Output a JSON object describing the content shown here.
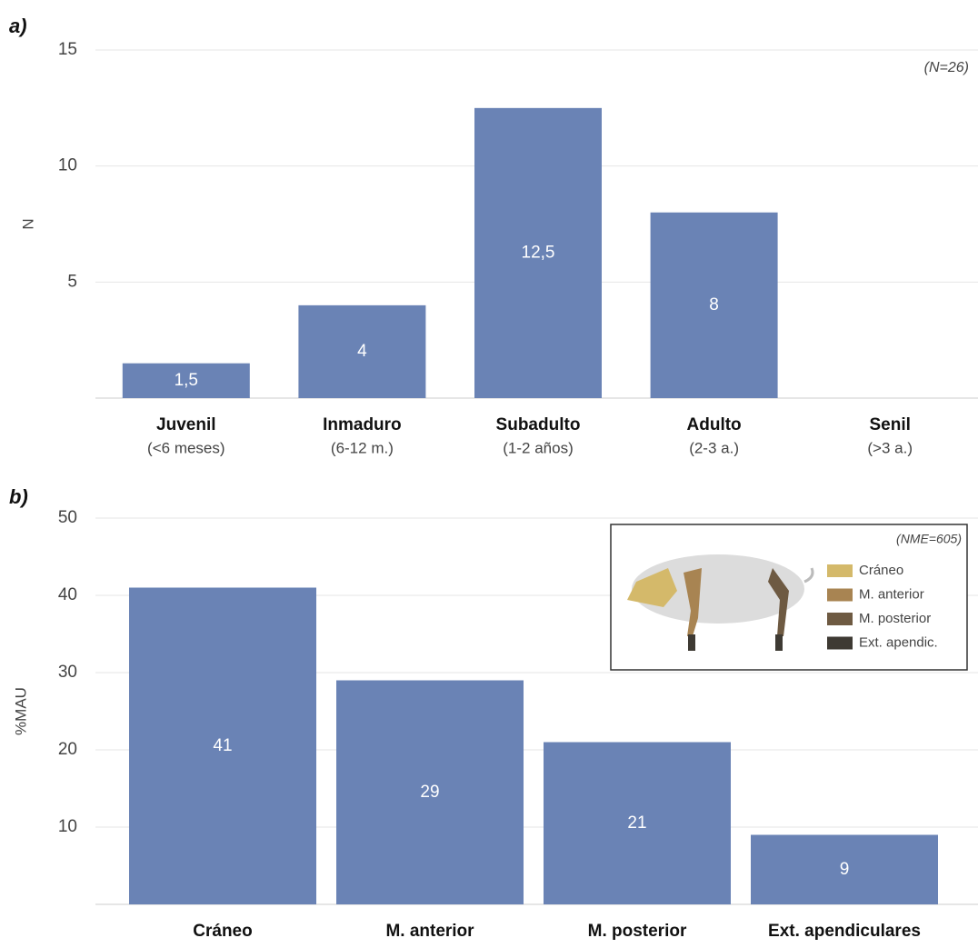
{
  "chart_data": [
    {
      "type": "bar",
      "panel": "a)",
      "note": "(N=26)",
      "y_label": "N",
      "categories": [
        "Juvenil",
        "Inmaduro",
        "Subadulto",
        "Adulto",
        "Senil"
      ],
      "category_notes": [
        "(<6 meses)",
        "(6-12 m.)",
        "(1-2 años)",
        "(2-3 a.)",
        "(>3 a.)"
      ],
      "values": [
        1.5,
        4,
        12.5,
        8,
        null
      ],
      "value_labels": [
        "1,5",
        "4",
        "12,5",
        "8",
        null
      ],
      "color": "#6a83b5",
      "ylim": [
        0,
        15
      ],
      "yticks": [
        5,
        10,
        15
      ],
      "grid": true
    },
    {
      "type": "bar",
      "panel": "b)",
      "y_label": "%MAU",
      "categories": [
        "Cráneo",
        "M. anterior",
        "M. posterior",
        "Ext. apendiculares"
      ],
      "values": [
        41,
        29,
        21,
        9
      ],
      "color": "#6a83b5",
      "ylim": [
        0,
        50
      ],
      "yticks": [
        10,
        20,
        30,
        40,
        50
      ],
      "grid": true,
      "legend": {
        "note": "(NME=605)",
        "items": [
          {
            "label": "Cráneo",
            "color": "#d4b96a"
          },
          {
            "label": "M. anterior",
            "color": "#a88452"
          },
          {
            "label": "M. posterior",
            "color": "#6e5a42"
          },
          {
            "label": "Ext. apendic.",
            "color": "#3e3a33"
          }
        ]
      }
    }
  ]
}
